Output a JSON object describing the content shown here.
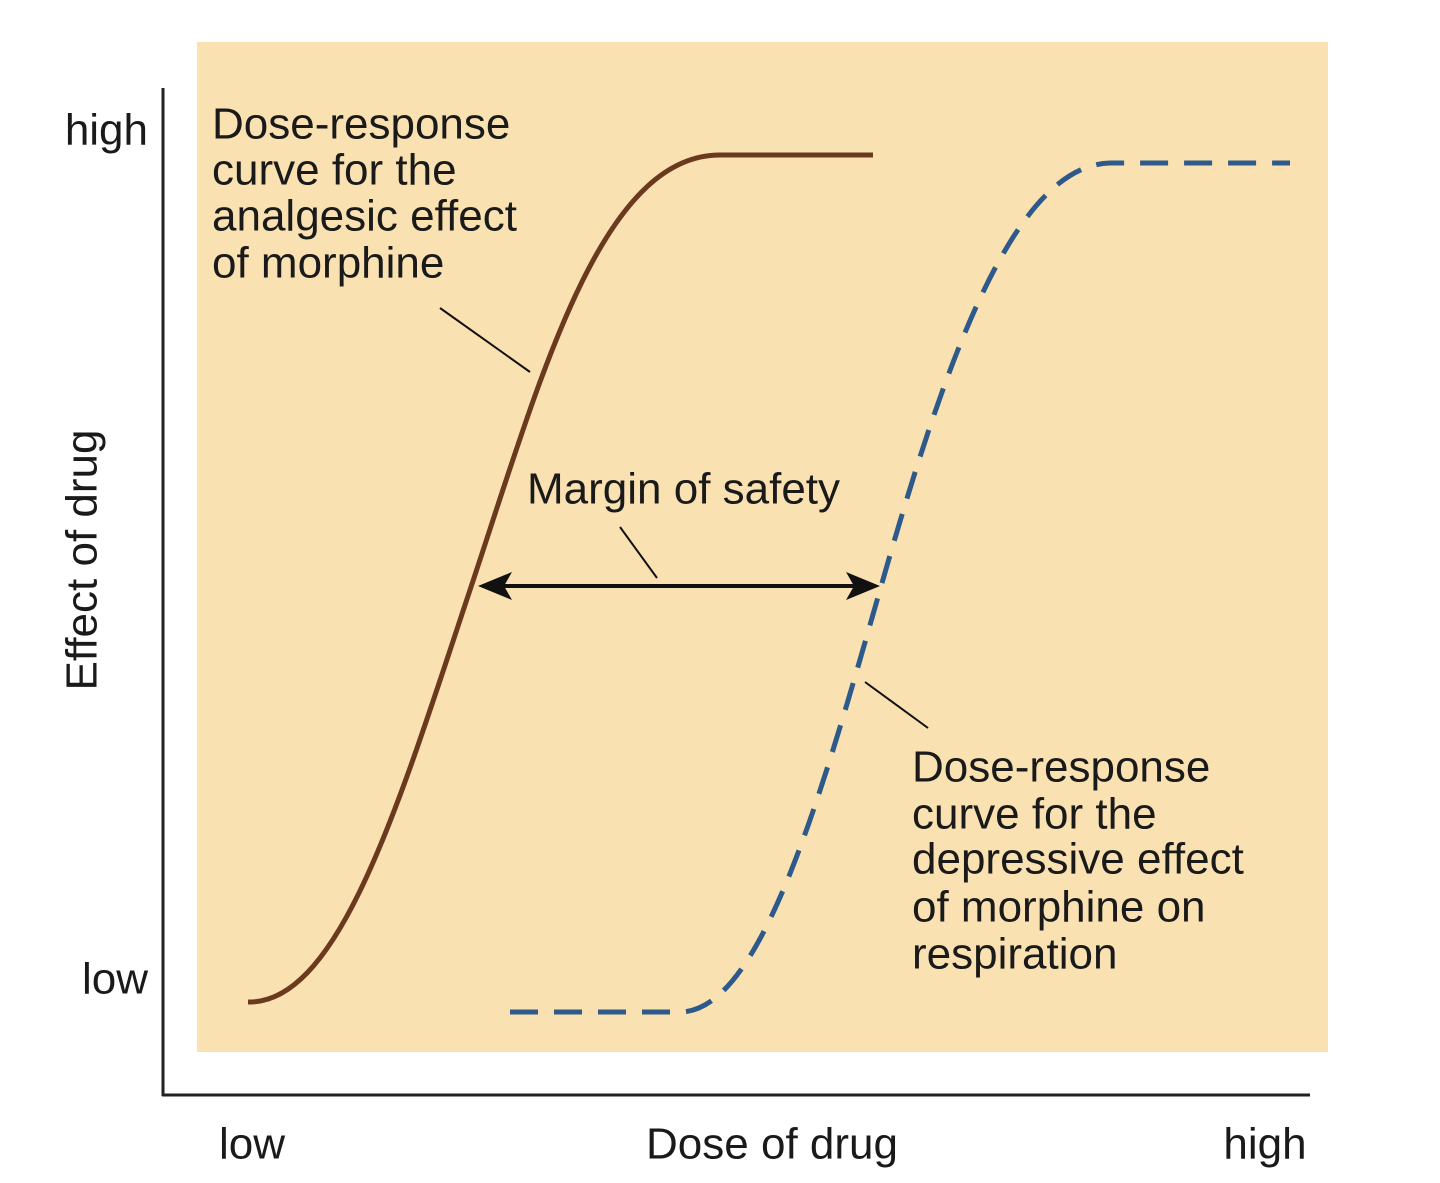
{
  "y_axis": {
    "title": "Effect of drug",
    "high": "high",
    "low": "low"
  },
  "x_axis": {
    "title": "Dose of drug",
    "low": "low",
    "high": "high"
  },
  "annotations": {
    "analgesic": [
      "Dose-response",
      "curve for the",
      "analgesic effect",
      "of morphine"
    ],
    "margin": "Margin of safety",
    "depressive": [
      "Dose-response",
      "curve for the",
      "depressive effect",
      "of morphine on",
      "respiration"
    ]
  }
}
